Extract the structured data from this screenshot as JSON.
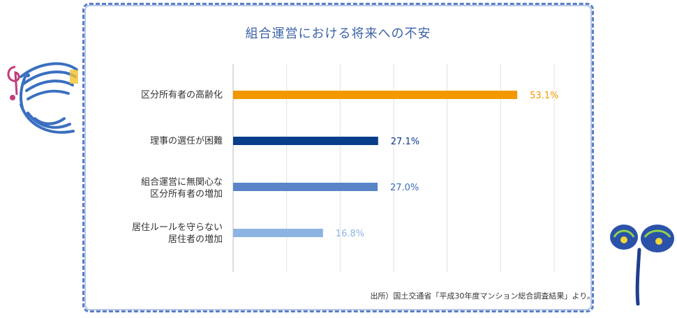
{
  "chart_data": {
    "type": "bar",
    "orientation": "horizontal",
    "title": "組合運営における将来への不安",
    "categories": [
      {
        "lines": [
          "区分所有者の高齢化"
        ]
      },
      {
        "lines": [
          "理事の選任が困難"
        ]
      },
      {
        "lines": [
          "組合運営に無関心な",
          "区分所有者の増加"
        ]
      },
      {
        "lines": [
          "居住ルールを守らない",
          "居住者の増加"
        ]
      }
    ],
    "values": [
      53.1,
      27.1,
      27.0,
      16.8
    ],
    "value_labels": [
      "53.1%",
      "27.1%",
      "27.0%",
      "16.8%"
    ],
    "bar_colors": [
      "#f39800",
      "#0a3d8a",
      "#5a84c8",
      "#8cb4e2"
    ],
    "label_colors": [
      "#f39800",
      "#0a3d8a",
      "#3d6db5",
      "#8cb4e2"
    ],
    "xlim": [
      0,
      60
    ],
    "grid": true,
    "source": "出所）国土交通省「平成30年度マンション総合調査結果」より。"
  }
}
